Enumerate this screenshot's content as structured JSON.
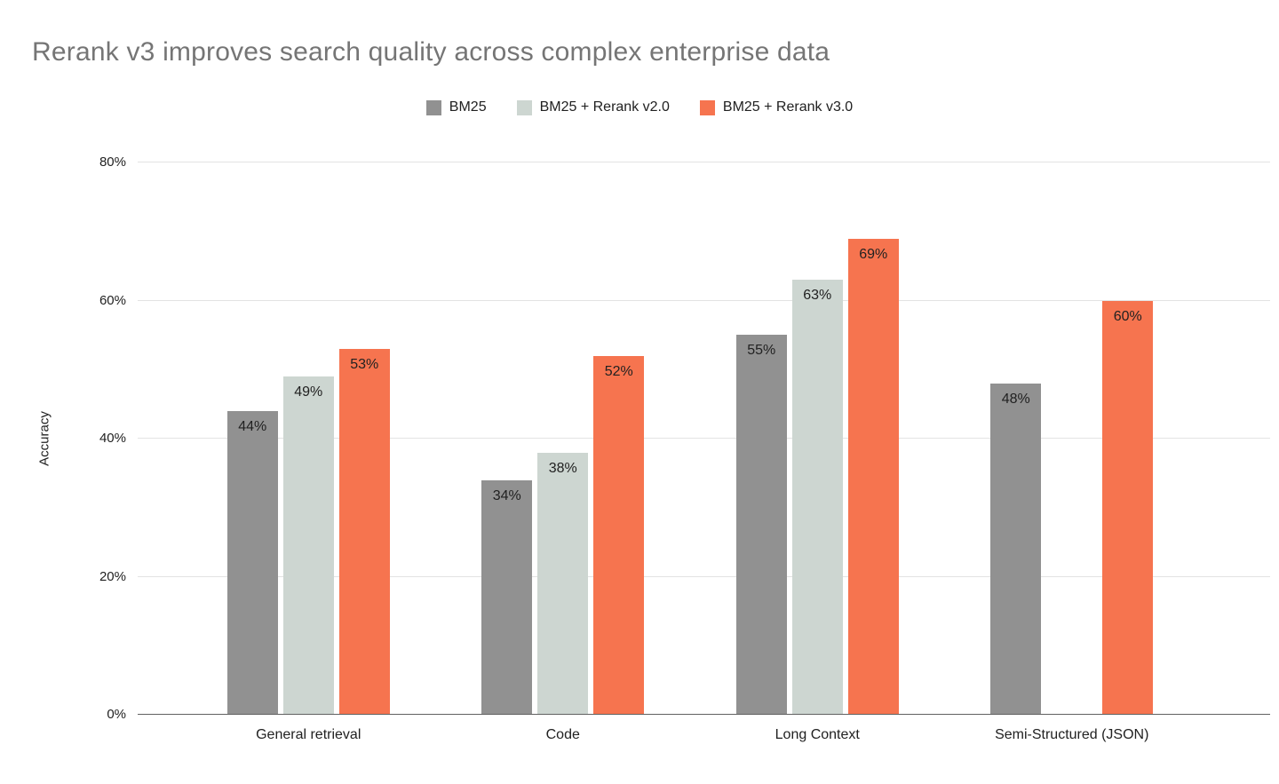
{
  "title": "Rerank v3 improves search quality across complex enterprise data",
  "legend": {
    "items": [
      {
        "label": "BM25",
        "color": "#919191"
      },
      {
        "label": "BM25 + Rerank v2.0",
        "color": "#cdd6d1"
      },
      {
        "label": "BM25 + Rerank v3.0",
        "color": "#f6744f"
      }
    ]
  },
  "chart_data": {
    "type": "bar",
    "title": "Rerank v3 improves search quality across complex enterprise data",
    "categories": [
      "General retrieval",
      "Code",
      "Long Context",
      "Semi-Structured (JSON)"
    ],
    "series": [
      {
        "name": "BM25",
        "color": "#919191",
        "values": [
          44,
          34,
          55,
          48
        ]
      },
      {
        "name": "BM25 + Rerank v2.0",
        "color": "#cdd6d1",
        "values": [
          49,
          38,
          63,
          null
        ]
      },
      {
        "name": "BM25 + Rerank v3.0",
        "color": "#f6744f",
        "values": [
          53,
          52,
          69,
          60
        ]
      }
    ],
    "data_labels": [
      [
        "44%",
        "34%",
        "55%",
        "48%"
      ],
      [
        "49%",
        "38%",
        "63%",
        null
      ],
      [
        "53%",
        "52%",
        "69%",
        "60%"
      ]
    ],
    "xlabel": "",
    "ylabel": "Accuracy",
    "ylim": [
      0,
      80
    ],
    "yticks": [
      0,
      20,
      40,
      60,
      80
    ],
    "ytick_labels": [
      "0%",
      "20%",
      "40%",
      "60%",
      "80%"
    ],
    "grid": true,
    "legend_position": "top",
    "title_color": "#757575",
    "axis_label_color": "#212121",
    "gridline_color": "#e3e3e3",
    "baseline_color": "#616161"
  }
}
